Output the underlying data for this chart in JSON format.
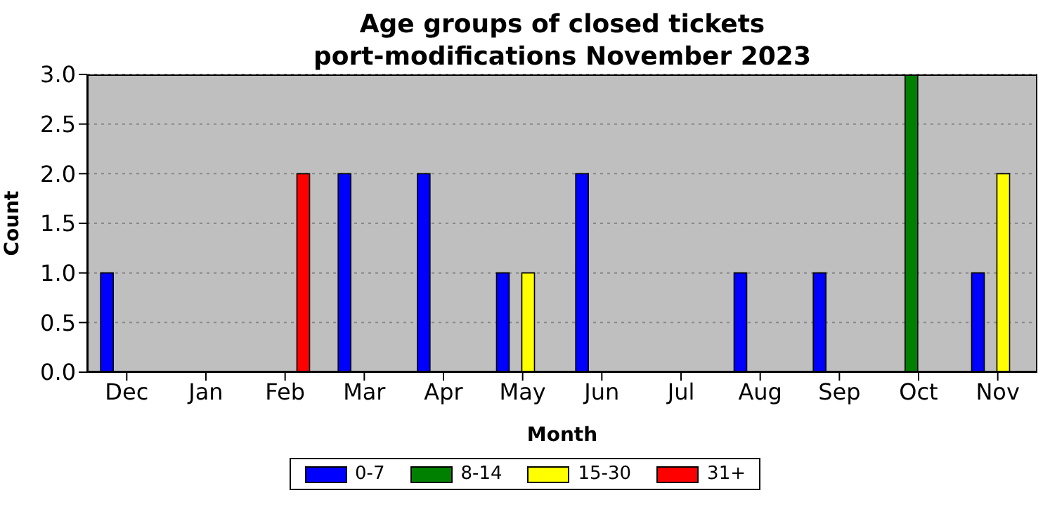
{
  "chart_data": {
    "type": "bar",
    "title": "Age groups of closed tickets\nport-modifications November 2023",
    "xlabel": "Month",
    "ylabel": "Count",
    "categories": [
      "Dec",
      "Jan",
      "Feb",
      "Mar",
      "Apr",
      "May",
      "Jun",
      "Jul",
      "Aug",
      "Sep",
      "Oct",
      "Nov"
    ],
    "series": [
      {
        "name": "0-7",
        "color": "#0000ff",
        "values": [
          1,
          0,
          0,
          2,
          2,
          1,
          2,
          0,
          1,
          1,
          0,
          1
        ]
      },
      {
        "name": "8-14",
        "color": "#008000",
        "values": [
          0,
          0,
          0,
          0,
          0,
          0,
          0,
          0,
          0,
          0,
          3,
          0
        ]
      },
      {
        "name": "15-30",
        "color": "#ffff00",
        "values": [
          0,
          0,
          0,
          0,
          0,
          1,
          0,
          0,
          0,
          0,
          0,
          2
        ]
      },
      {
        "name": "31+",
        "color": "#ff0000",
        "values": [
          0,
          0,
          2,
          0,
          0,
          0,
          0,
          0,
          0,
          0,
          0,
          0
        ]
      }
    ],
    "ylim": [
      0,
      3
    ],
    "yticks": [
      {
        "value": 0,
        "label": "0.0"
      },
      {
        "value": 0.5,
        "label": "0.5"
      },
      {
        "value": 1,
        "label": "1.0"
      },
      {
        "value": 1.5,
        "label": "1.5"
      },
      {
        "value": 2,
        "label": "2.0"
      },
      {
        "value": 2.5,
        "label": "2.5"
      },
      {
        "value": 3,
        "label": "3.0"
      }
    ],
    "grid": "y",
    "legend": "bottom"
  }
}
